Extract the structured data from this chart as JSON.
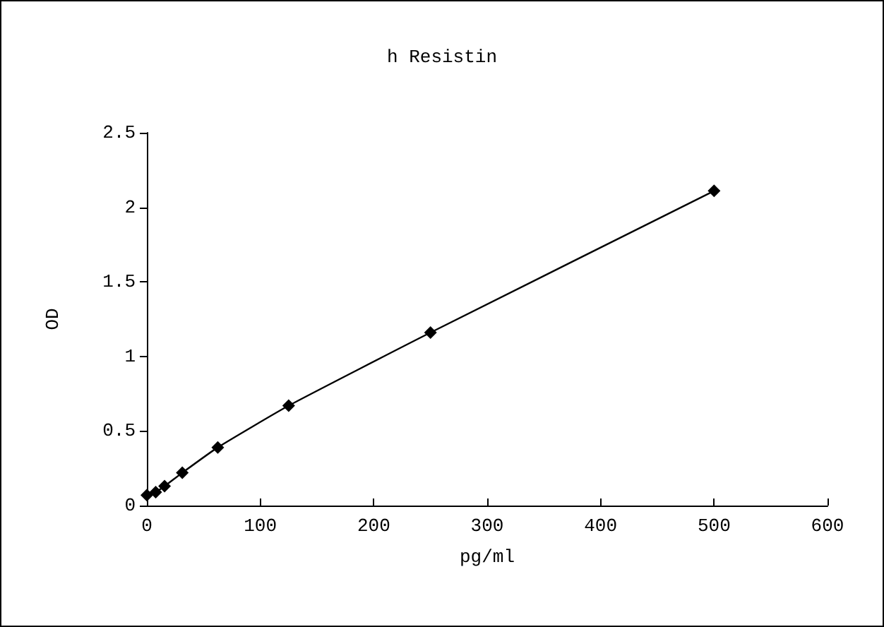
{
  "chart_data": {
    "type": "line",
    "title": "h Resistin",
    "xlabel": "pg/ml",
    "ylabel": "OD",
    "x": [
      0,
      7.8,
      15.6,
      31.25,
      62.5,
      125,
      250,
      500
    ],
    "series": [
      {
        "color": "#000000",
        "values": [
          0.07,
          0.09,
          0.13,
          0.22,
          0.39,
          0.67,
          1.16,
          2.11
        ]
      }
    ],
    "xlim": [
      0,
      600
    ],
    "xticks": [
      0,
      100,
      200,
      300,
      400,
      500,
      600
    ],
    "ylim": [
      0,
      2.5
    ],
    "yticks": [
      0,
      0.5,
      1,
      1.5,
      2,
      2.5
    ],
    "grid": false,
    "marker": "diamond",
    "line_style": "solid"
  }
}
